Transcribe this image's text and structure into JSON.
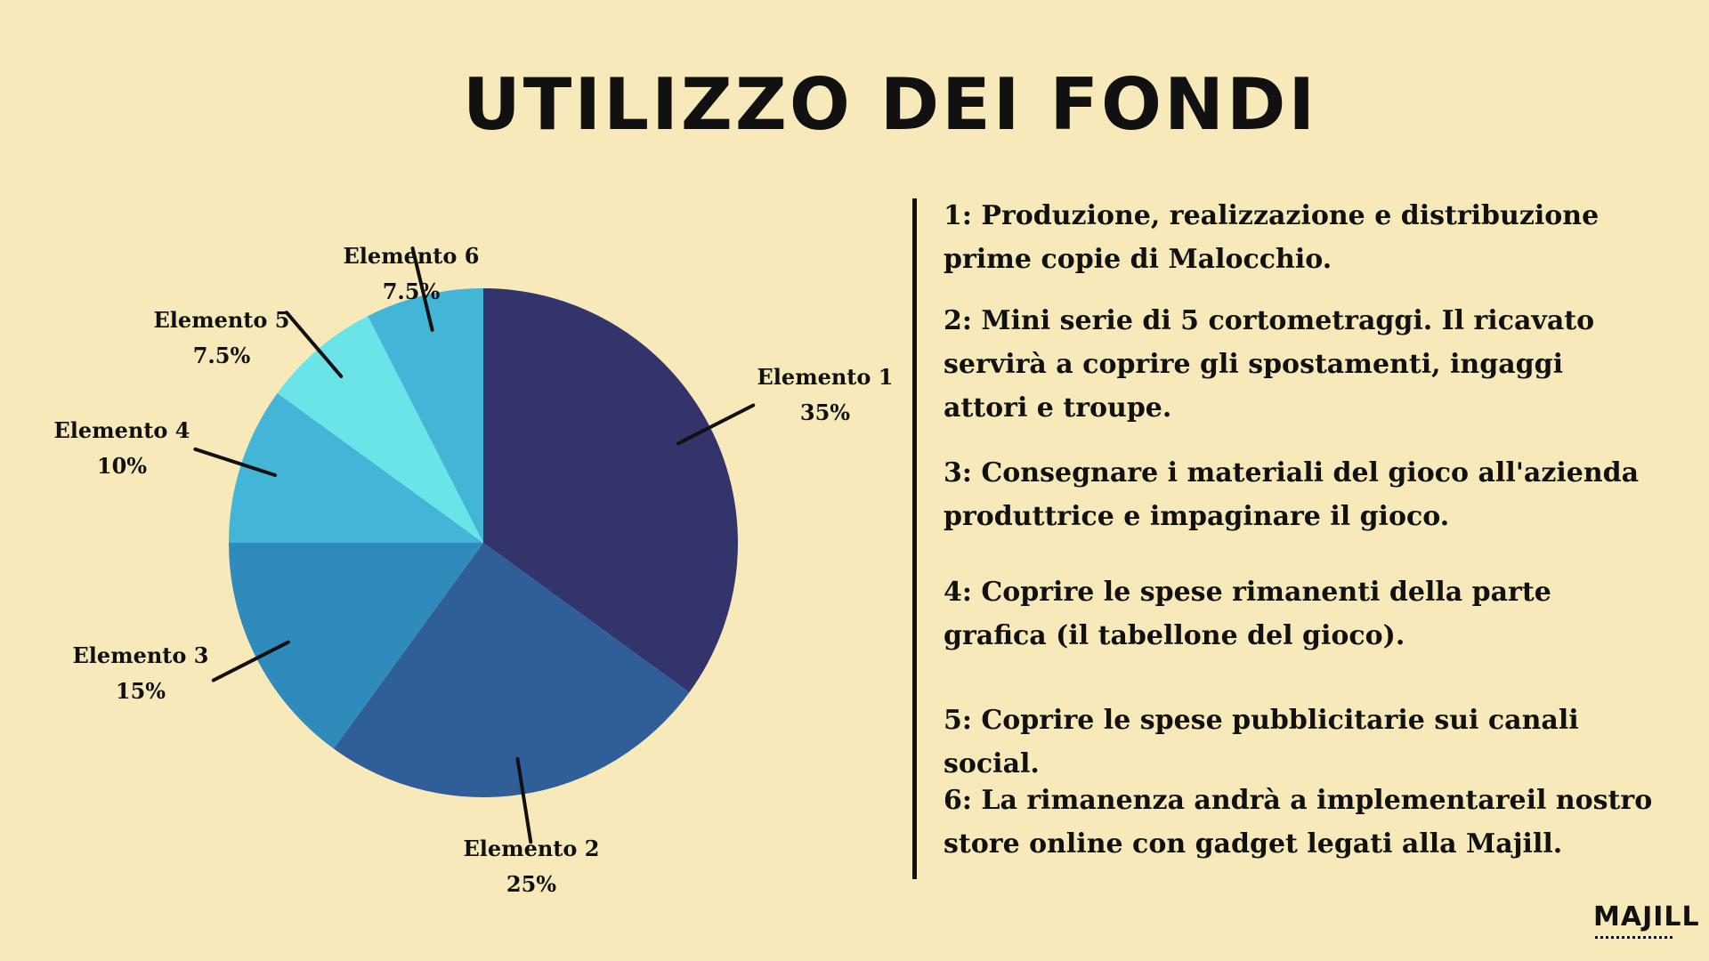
{
  "title": "UTILIZZO DEI FONDI",
  "chart_data": {
    "type": "pie",
    "categories": [
      "Elemento 1",
      "Elemento 2",
      "Elemento 3",
      "Elemento 4",
      "Elemento 5",
      "Elemento 6"
    ],
    "values": [
      35,
      25,
      15,
      10,
      7.5,
      7.5
    ],
    "value_labels": [
      "35%",
      "25%",
      "15%",
      "10%",
      "7.5%",
      "7.5%"
    ],
    "colors": [
      "#32346b",
      "#2f5e99",
      "#2e8bbb",
      "#43b6d8",
      "#6ae3e9",
      "#43b6d8"
    ],
    "start": "12 o'clock, clockwise"
  },
  "legend": [
    {
      "text": "1: Produzione, realizzazione e distribuzione prime copie di Malocchio."
    },
    {
      "text": "2:  Mini serie di 5 cortometraggi. Il ricavato servirà a coprire gli spostamenti, ingaggi attori e troupe."
    },
    {
      "text": "3: Consegnare i materiali del gioco all'azienda produttrice e impaginare il gioco."
    },
    {
      "text": "4: Coprire le spese rimanenti della parte grafica (il tabellone del gioco)."
    },
    {
      "text": "5: Coprire le spese pubblicitarie sui canali social."
    },
    {
      "text": "6: La rimanenza andrà a implementareil nostro store online con gadget legati alla Majill."
    }
  ],
  "logo": "MAJILL"
}
